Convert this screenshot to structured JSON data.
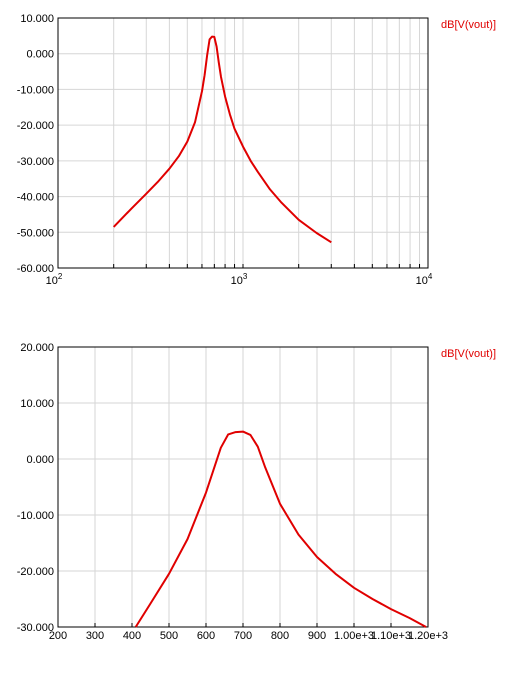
{
  "chart_data": [
    {
      "type": "line",
      "xscale": "log",
      "xlim": [
        100,
        10000
      ],
      "ylim": [
        -60,
        10
      ],
      "x_tick_labels": [
        {
          "base": "10",
          "exp": "2",
          "value": 100
        },
        {
          "base": "10",
          "exp": "3",
          "value": 1000
        },
        {
          "base": "10",
          "exp": "4",
          "value": 10000
        }
      ],
      "y_tick_labels": [
        "10.000",
        "0.000",
        "-10.000",
        "-20.000",
        "-30.000",
        "-40.000",
        "-50.000",
        "-60.000"
      ],
      "y_tick_values": [
        10,
        0,
        -10,
        -20,
        -30,
        -40,
        -50,
        -60
      ],
      "grid": true,
      "legend_position": "top-right",
      "series": [
        {
          "name": "dB[V(vout)]",
          "color": "#e00000",
          "x": [
            200,
            250,
            300,
            350,
            400,
            450,
            500,
            550,
            600,
            620,
            640,
            660,
            680,
            700,
            720,
            740,
            760,
            800,
            850,
            900,
            1000,
            1100,
            1200,
            1400,
            1600,
            2000,
            2500,
            3000
          ],
          "y": [
            -48.5,
            -43.3,
            -39.2,
            -35.6,
            -32.2,
            -28.7,
            -24.6,
            -19.2,
            -10.5,
            -6.0,
            -0.5,
            4.0,
            4.8,
            4.7,
            2.0,
            -2.5,
            -6.5,
            -12.0,
            -17.0,
            -21.0,
            -26.0,
            -30.0,
            -33.0,
            -38.0,
            -41.5,
            -46.5,
            -50.2,
            -52.8
          ]
        }
      ]
    },
    {
      "type": "line",
      "xscale": "linear",
      "xlim": [
        200,
        1200
      ],
      "ylim": [
        -30,
        20
      ],
      "x_tick_labels": [
        "200",
        "300",
        "400",
        "500",
        "600",
        "700",
        "800",
        "900",
        "1.00e+3",
        "1.10e+3",
        "1.20e+3"
      ],
      "x_tick_values": [
        200,
        300,
        400,
        500,
        600,
        700,
        800,
        900,
        1000,
        1100,
        1200
      ],
      "y_tick_labels": [
        "20.000",
        "10.000",
        "0.000",
        "-10.000",
        "-20.000",
        "-30.000"
      ],
      "y_tick_values": [
        20,
        10,
        0,
        -10,
        -20,
        -30
      ],
      "grid": true,
      "legend_position": "top-right",
      "series": [
        {
          "name": "dB[V(vout)]",
          "color": "#e00000",
          "x": [
            410,
            450,
            500,
            550,
            600,
            620,
            640,
            660,
            680,
            700,
            720,
            740,
            760,
            800,
            850,
            900,
            950,
            1000,
            1050,
            1100,
            1150,
            1195
          ],
          "y": [
            -30.0,
            -25.8,
            -20.5,
            -14.3,
            -6.0,
            -2.0,
            2.0,
            4.4,
            4.8,
            4.9,
            4.3,
            2.2,
            -1.5,
            -8.0,
            -13.5,
            -17.5,
            -20.5,
            -23.0,
            -25.0,
            -26.8,
            -28.4,
            -30.0
          ]
        }
      ]
    }
  ]
}
